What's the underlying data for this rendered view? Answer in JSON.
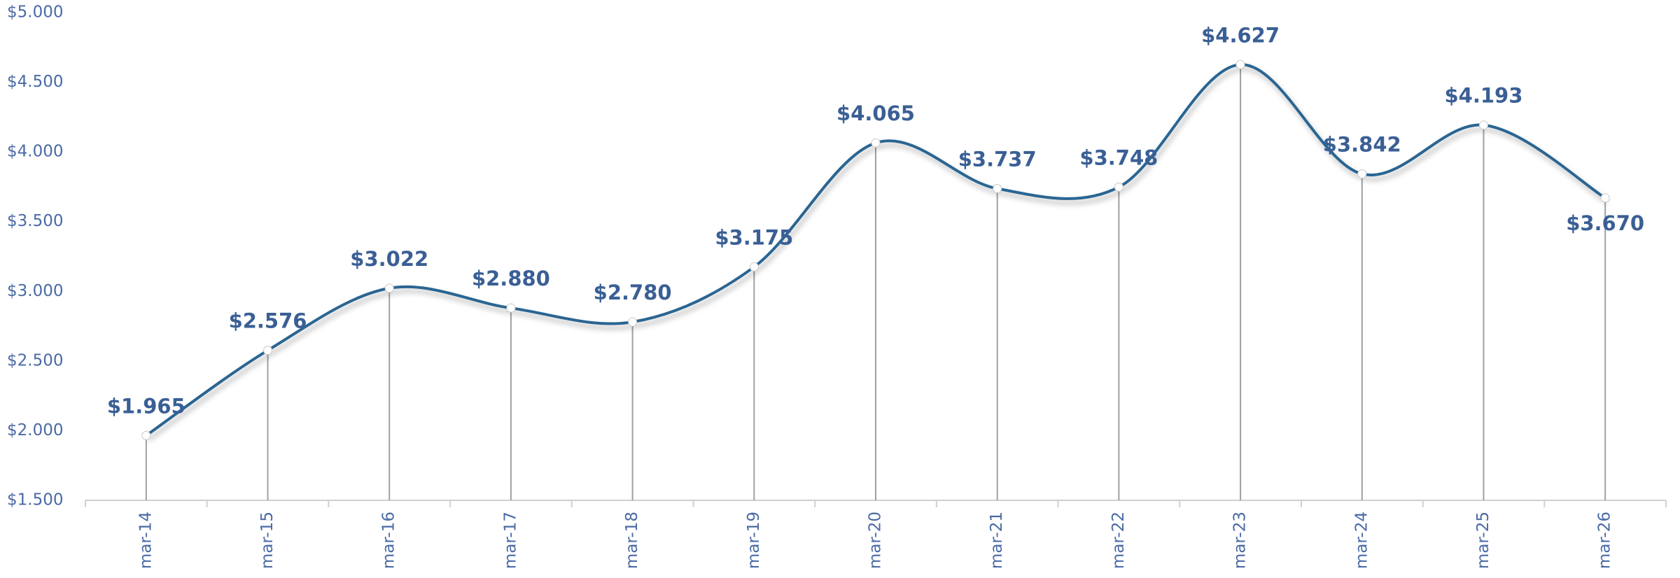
{
  "chart_data": {
    "type": "line",
    "categories": [
      "mar-14",
      "mar-15",
      "mar-16",
      "mar-17",
      "mar-18",
      "mar-19",
      "mar-20",
      "mar-21",
      "mar-22",
      "mar-23",
      "mar-24",
      "mar-25",
      "mar-26"
    ],
    "values": [
      1965,
      2576,
      3022,
      2880,
      2780,
      3175,
      4065,
      3737,
      3748,
      4627,
      3842,
      4193,
      3670
    ],
    "value_labels": [
      "$1.965",
      "$2.576",
      "$3.022",
      "$2.880",
      "$2.780",
      "$3.175",
      "$4.065",
      "$3.737",
      "$3.748",
      "$4.627",
      "$3.842",
      "$4.193",
      "$3.670"
    ],
    "color": "#2a6592",
    "ylim": [
      1500,
      5000
    ],
    "yticks": [
      {
        "value": 1500,
        "label": "$1.500"
      },
      {
        "value": 2000,
        "label": "$2.000"
      },
      {
        "value": 2500,
        "label": "$2.500"
      },
      {
        "value": 3000,
        "label": "$3.000"
      },
      {
        "value": 3500,
        "label": "$3.500"
      },
      {
        "value": 4000,
        "label": "$4.000"
      },
      {
        "value": 4500,
        "label": "$4.500"
      },
      {
        "value": 5000,
        "label": "$5.000"
      }
    ],
    "grid": false
  }
}
